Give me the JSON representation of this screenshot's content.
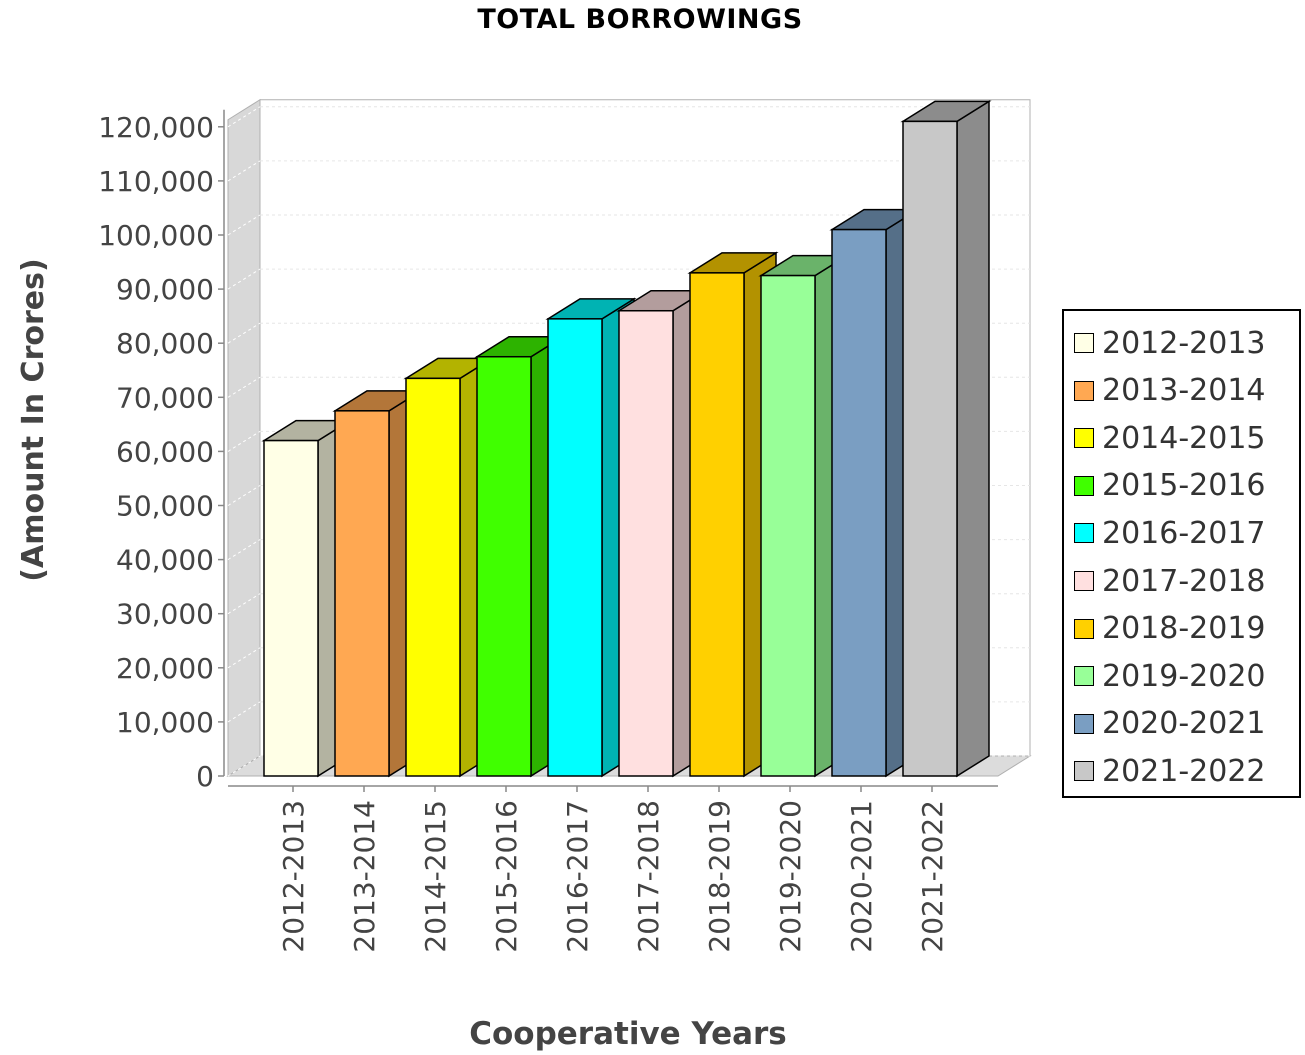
{
  "chart_data": {
    "type": "bar",
    "title": "TOTAL BORROWINGS",
    "xlabel": "Cooperative Years",
    "ylabel": "(Amount In Crores)",
    "ylim": [
      0,
      125000
    ],
    "yticks": [
      0,
      10000,
      20000,
      30000,
      40000,
      50000,
      60000,
      70000,
      80000,
      90000,
      100000,
      110000,
      120000
    ],
    "ytick_labels": [
      "0",
      "10,000",
      "20,000",
      "30,000",
      "40,000",
      "50,000",
      "60,000",
      "70,000",
      "80,000",
      "90,000",
      "100,000",
      "110,000",
      "120,000"
    ],
    "categories": [
      "2012-2013",
      "2013-2014",
      "2014-2015",
      "2015-2016",
      "2016-2017",
      "2017-2018",
      "2018-2019",
      "2019-2020",
      "2020-2021",
      "2021-2022"
    ],
    "values": [
      62000,
      67500,
      73500,
      77500,
      84500,
      86000,
      93000,
      92500,
      101000,
      121000
    ],
    "colors": [
      "#ffffe6",
      "#ffa852",
      "#ffff00",
      "#40ff00",
      "#00ffff",
      "#ffe0e0",
      "#ffd000",
      "#98ff98",
      "#7a9ec2",
      "#c8c8c8"
    ],
    "legend_position": "right",
    "grid": true,
    "style": "3d"
  }
}
